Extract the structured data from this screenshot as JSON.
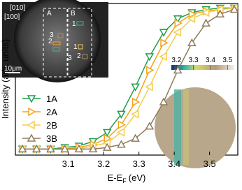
{
  "chart_data": {
    "type": "line",
    "ylabel": "Intensity (arb. units)",
    "xlabel": {
      "main": "E-E",
      "sub": "F",
      "unit": "(eV)"
    },
    "x": [
      2.97,
      3.01,
      3.05,
      3.09,
      3.13,
      3.17,
      3.21,
      3.25,
      3.29,
      3.33,
      3.37,
      3.41,
      3.45,
      3.49,
      3.53,
      3.57
    ],
    "series": [
      {
        "name": "1A",
        "color": "#1f9e4f",
        "marker": "triangle-down",
        "values": [
          0.04,
          0.04,
          0.04,
          0.05,
          0.06,
          0.09,
          0.15,
          0.27,
          0.45,
          0.65,
          0.81,
          0.9,
          0.94,
          0.96,
          0.97,
          0.97
        ]
      },
      {
        "name": "2A",
        "color": "#f5a21b",
        "marker": "triangle-right",
        "values": [
          0.04,
          0.04,
          0.04,
          0.04,
          0.05,
          0.07,
          0.11,
          0.2,
          0.35,
          0.56,
          0.74,
          0.87,
          0.93,
          0.95,
          0.96,
          0.97
        ]
      },
      {
        "name": "2B",
        "color": "#f6cc4a",
        "marker": "triangle-left",
        "values": [
          0.04,
          0.04,
          0.04,
          0.04,
          0.04,
          0.06,
          0.08,
          0.15,
          0.27,
          0.45,
          0.65,
          0.81,
          0.9,
          0.94,
          0.96,
          0.97
        ]
      },
      {
        "name": "3B",
        "color": "#8f7a5c",
        "marker": "triangle-up",
        "values": [
          0.04,
          0.04,
          0.04,
          0.04,
          0.04,
          0.04,
          0.05,
          0.07,
          0.11,
          0.19,
          0.35,
          0.56,
          0.74,
          0.87,
          0.93,
          0.96
        ]
      }
    ],
    "xlim": [
      2.95,
      3.58
    ],
    "xticks": [
      3.1,
      3.2,
      3.3,
      3.4,
      3.5
    ],
    "ylim": [
      0,
      1
    ],
    "inset_labels": [
      "[010]",
      "[100]",
      "A",
      "B",
      "1",
      "2",
      "3",
      "1",
      "2",
      "3",
      "10μm"
    ],
    "colorbar": {
      "lim": [
        3.17,
        3.54
      ],
      "ticks": [
        3.2,
        3.3,
        3.4,
        3.5
      ]
    }
  }
}
